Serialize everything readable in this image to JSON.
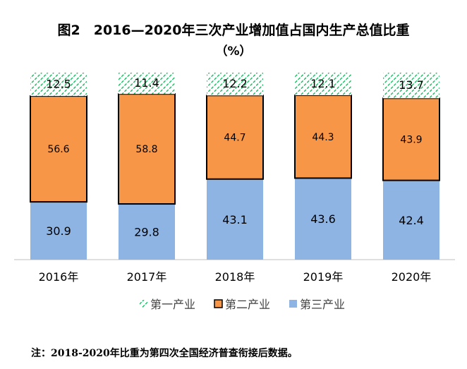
{
  "chart_data": {
    "type": "bar",
    "stacked": true,
    "title": "图2　2016—2020年三次产业增加值占国内生产总值比重",
    "subtitle": "（%）",
    "categories": [
      "2016年",
      "2017年",
      "2018年",
      "2019年",
      "2020年"
    ],
    "series": [
      {
        "name": "第三产业",
        "values": [
          30.9,
          29.8,
          43.1,
          43.6,
          42.4
        ],
        "color": "#8EB4E3"
      },
      {
        "name": "第二产业",
        "values": [
          56.6,
          58.8,
          44.7,
          44.3,
          43.9
        ],
        "color": "#F79646"
      },
      {
        "name": "第一产业",
        "values": [
          12.5,
          11.4,
          12.2,
          12.1,
          13.7
        ],
        "color": "#00B050",
        "pattern": "hatch"
      }
    ],
    "legend_order": [
      "第一产业",
      "第二产业",
      "第三产业"
    ],
    "legend": "bottom",
    "ylim": [
      0,
      100
    ],
    "grid": false
  },
  "note": "注：2018-2020年比重为第四次全国经济普查衔接后数据。"
}
